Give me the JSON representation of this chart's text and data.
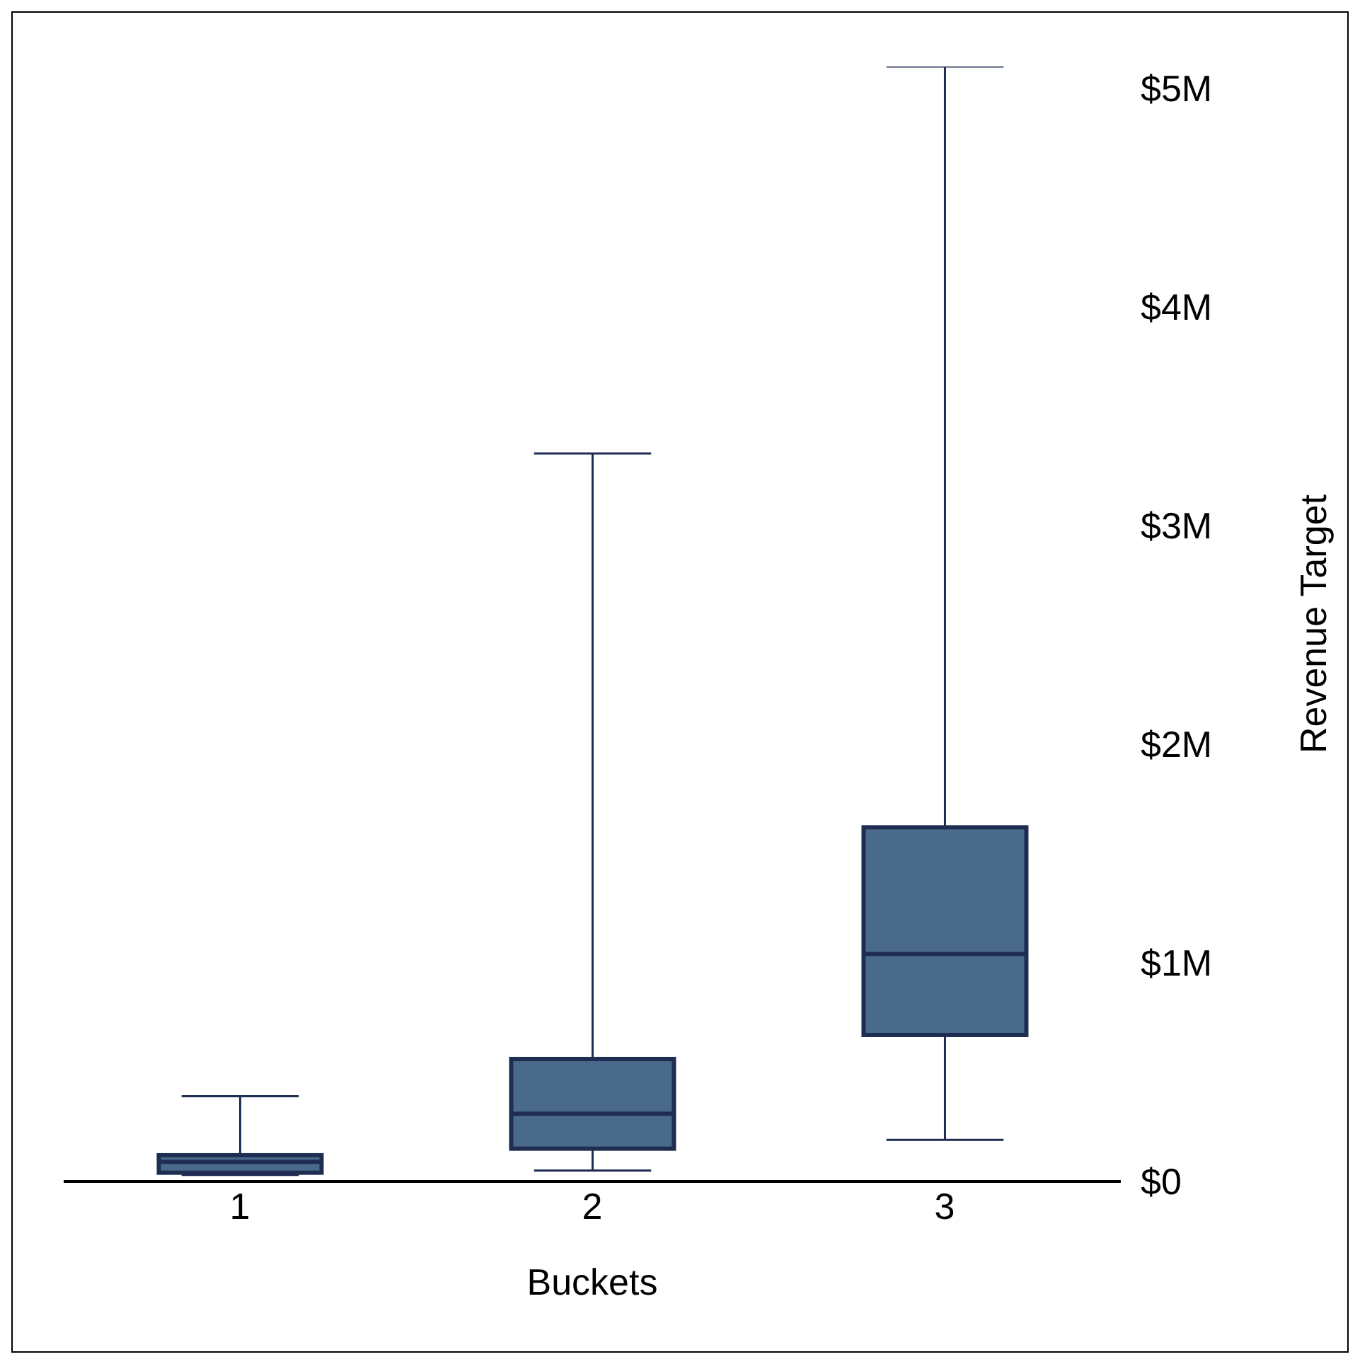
{
  "chart_data": {
    "type": "box",
    "categories": [
      "1",
      "2",
      "3"
    ],
    "xlabel": "Buckets",
    "ylabel": "Revenue Target",
    "color": "#4a6a8c",
    "boxes": [
      {
        "low": 0.03,
        "q1": 0.04,
        "median": 0.09,
        "q3": 0.12,
        "high": 0.39
      },
      {
        "low": 0.05,
        "q1": 0.15,
        "median": 0.31,
        "q3": 0.56,
        "high": 3.33
      },
      {
        "low": 0.19,
        "q1": 0.67,
        "median": 1.04,
        "q3": 1.62,
        "high": 5.1
      }
    ],
    "ylim": [
      0,
      5.1
    ],
    "yticks": [
      {
        "value": 0,
        "label": "$0"
      },
      {
        "value": 1,
        "label": "$1M"
      },
      {
        "value": 2,
        "label": "$2M"
      },
      {
        "value": 3,
        "label": "$3M"
      },
      {
        "value": 4,
        "label": "$4M"
      },
      {
        "value": 5,
        "label": "$5M"
      }
    ],
    "grid": false,
    "legend": false
  }
}
